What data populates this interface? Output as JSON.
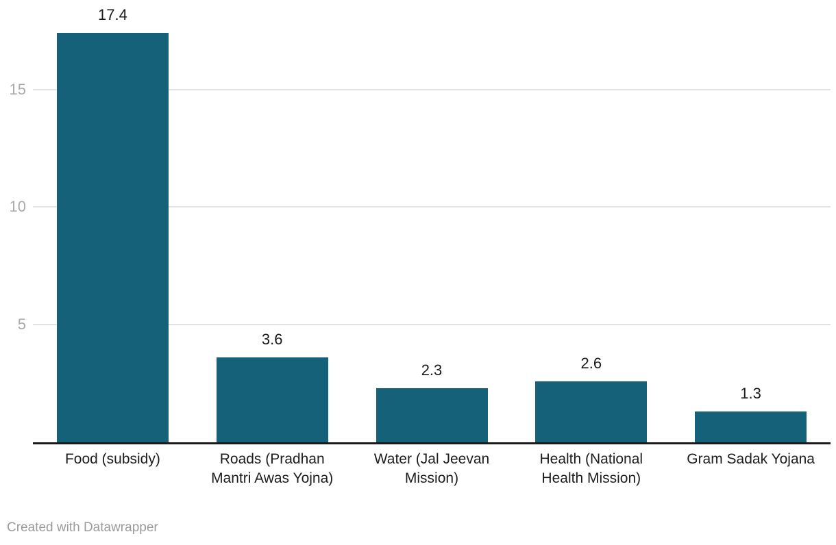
{
  "chart_data": {
    "type": "bar",
    "categories": [
      "Food (subsidy)",
      "Roads (Pradhan Mantri Awas Yojna)",
      "Water (Jal Jeevan Mission)",
      "Health (National Health Mission)",
      "Gram Sadak Yojana"
    ],
    "values": [
      17.4,
      3.6,
      2.3,
      2.6,
      1.3
    ],
    "value_labels": [
      "17.4",
      "3.6",
      "2.3",
      "2.6",
      "1.3"
    ],
    "title": "",
    "xlabel": "",
    "ylabel": "",
    "ylim": [
      0,
      18.8
    ],
    "yticks": [
      5,
      10,
      15
    ],
    "ytick_labels": [
      "5",
      "10",
      "15"
    ],
    "grid": true,
    "legend": "none",
    "colors": {
      "bar": "#15617a",
      "gridline": "#e3e3e3",
      "tick_label": "#aaaaaa",
      "axis_line": "#1a1a1a",
      "value_label": "#1a1a1a",
      "category_label": "#1d1d1d",
      "credit": "#9b9b9b"
    }
  },
  "footer": {
    "credit": "Created with Datawrapper"
  }
}
